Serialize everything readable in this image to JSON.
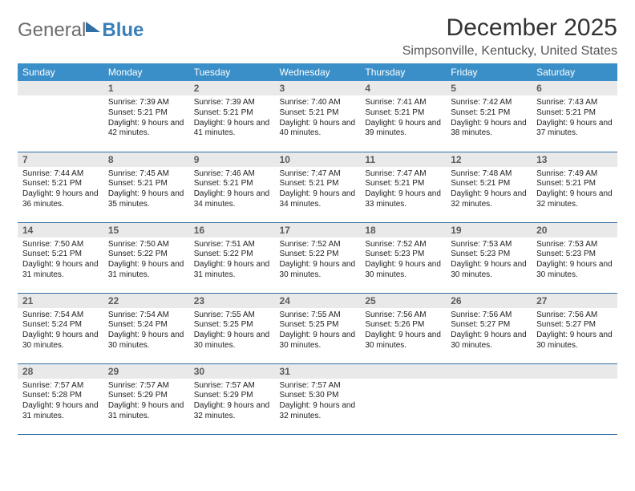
{
  "logo": {
    "part1": "General",
    "part2": "Blue"
  },
  "title": "December 2025",
  "location": "Simpsonville, Kentucky, United States",
  "colors": {
    "header_bg": "#3b8fc8",
    "header_fg": "#ffffff",
    "daynum_bg": "#e9e9e9",
    "daynum_fg": "#5b5b5b",
    "rule": "#2f6fa4",
    "text": "#222222",
    "logo_gray": "#6b6b6b",
    "logo_blue": "#3b7fb8"
  },
  "fonts": {
    "title_size": 30,
    "location_size": 16,
    "dow_size": 12,
    "daynum_size": 12,
    "body_size": 10
  },
  "daysOfWeek": [
    "Sunday",
    "Monday",
    "Tuesday",
    "Wednesday",
    "Thursday",
    "Friday",
    "Saturday"
  ],
  "weeks": [
    [
      {
        "num": "",
        "sunrise": "",
        "sunset": "",
        "daylight": ""
      },
      {
        "num": "1",
        "sunrise": "Sunrise: 7:39 AM",
        "sunset": "Sunset: 5:21 PM",
        "daylight": "Daylight: 9 hours and 42 minutes."
      },
      {
        "num": "2",
        "sunrise": "Sunrise: 7:39 AM",
        "sunset": "Sunset: 5:21 PM",
        "daylight": "Daylight: 9 hours and 41 minutes."
      },
      {
        "num": "3",
        "sunrise": "Sunrise: 7:40 AM",
        "sunset": "Sunset: 5:21 PM",
        "daylight": "Daylight: 9 hours and 40 minutes."
      },
      {
        "num": "4",
        "sunrise": "Sunrise: 7:41 AM",
        "sunset": "Sunset: 5:21 PM",
        "daylight": "Daylight: 9 hours and 39 minutes."
      },
      {
        "num": "5",
        "sunrise": "Sunrise: 7:42 AM",
        "sunset": "Sunset: 5:21 PM",
        "daylight": "Daylight: 9 hours and 38 minutes."
      },
      {
        "num": "6",
        "sunrise": "Sunrise: 7:43 AM",
        "sunset": "Sunset: 5:21 PM",
        "daylight": "Daylight: 9 hours and 37 minutes."
      }
    ],
    [
      {
        "num": "7",
        "sunrise": "Sunrise: 7:44 AM",
        "sunset": "Sunset: 5:21 PM",
        "daylight": "Daylight: 9 hours and 36 minutes."
      },
      {
        "num": "8",
        "sunrise": "Sunrise: 7:45 AM",
        "sunset": "Sunset: 5:21 PM",
        "daylight": "Daylight: 9 hours and 35 minutes."
      },
      {
        "num": "9",
        "sunrise": "Sunrise: 7:46 AM",
        "sunset": "Sunset: 5:21 PM",
        "daylight": "Daylight: 9 hours and 34 minutes."
      },
      {
        "num": "10",
        "sunrise": "Sunrise: 7:47 AM",
        "sunset": "Sunset: 5:21 PM",
        "daylight": "Daylight: 9 hours and 34 minutes."
      },
      {
        "num": "11",
        "sunrise": "Sunrise: 7:47 AM",
        "sunset": "Sunset: 5:21 PM",
        "daylight": "Daylight: 9 hours and 33 minutes."
      },
      {
        "num": "12",
        "sunrise": "Sunrise: 7:48 AM",
        "sunset": "Sunset: 5:21 PM",
        "daylight": "Daylight: 9 hours and 32 minutes."
      },
      {
        "num": "13",
        "sunrise": "Sunrise: 7:49 AM",
        "sunset": "Sunset: 5:21 PM",
        "daylight": "Daylight: 9 hours and 32 minutes."
      }
    ],
    [
      {
        "num": "14",
        "sunrise": "Sunrise: 7:50 AM",
        "sunset": "Sunset: 5:21 PM",
        "daylight": "Daylight: 9 hours and 31 minutes."
      },
      {
        "num": "15",
        "sunrise": "Sunrise: 7:50 AM",
        "sunset": "Sunset: 5:22 PM",
        "daylight": "Daylight: 9 hours and 31 minutes."
      },
      {
        "num": "16",
        "sunrise": "Sunrise: 7:51 AM",
        "sunset": "Sunset: 5:22 PM",
        "daylight": "Daylight: 9 hours and 31 minutes."
      },
      {
        "num": "17",
        "sunrise": "Sunrise: 7:52 AM",
        "sunset": "Sunset: 5:22 PM",
        "daylight": "Daylight: 9 hours and 30 minutes."
      },
      {
        "num": "18",
        "sunrise": "Sunrise: 7:52 AM",
        "sunset": "Sunset: 5:23 PM",
        "daylight": "Daylight: 9 hours and 30 minutes."
      },
      {
        "num": "19",
        "sunrise": "Sunrise: 7:53 AM",
        "sunset": "Sunset: 5:23 PM",
        "daylight": "Daylight: 9 hours and 30 minutes."
      },
      {
        "num": "20",
        "sunrise": "Sunrise: 7:53 AM",
        "sunset": "Sunset: 5:23 PM",
        "daylight": "Daylight: 9 hours and 30 minutes."
      }
    ],
    [
      {
        "num": "21",
        "sunrise": "Sunrise: 7:54 AM",
        "sunset": "Sunset: 5:24 PM",
        "daylight": "Daylight: 9 hours and 30 minutes."
      },
      {
        "num": "22",
        "sunrise": "Sunrise: 7:54 AM",
        "sunset": "Sunset: 5:24 PM",
        "daylight": "Daylight: 9 hours and 30 minutes."
      },
      {
        "num": "23",
        "sunrise": "Sunrise: 7:55 AM",
        "sunset": "Sunset: 5:25 PM",
        "daylight": "Daylight: 9 hours and 30 minutes."
      },
      {
        "num": "24",
        "sunrise": "Sunrise: 7:55 AM",
        "sunset": "Sunset: 5:25 PM",
        "daylight": "Daylight: 9 hours and 30 minutes."
      },
      {
        "num": "25",
        "sunrise": "Sunrise: 7:56 AM",
        "sunset": "Sunset: 5:26 PM",
        "daylight": "Daylight: 9 hours and 30 minutes."
      },
      {
        "num": "26",
        "sunrise": "Sunrise: 7:56 AM",
        "sunset": "Sunset: 5:27 PM",
        "daylight": "Daylight: 9 hours and 30 minutes."
      },
      {
        "num": "27",
        "sunrise": "Sunrise: 7:56 AM",
        "sunset": "Sunset: 5:27 PM",
        "daylight": "Daylight: 9 hours and 30 minutes."
      }
    ],
    [
      {
        "num": "28",
        "sunrise": "Sunrise: 7:57 AM",
        "sunset": "Sunset: 5:28 PM",
        "daylight": "Daylight: 9 hours and 31 minutes."
      },
      {
        "num": "29",
        "sunrise": "Sunrise: 7:57 AM",
        "sunset": "Sunset: 5:29 PM",
        "daylight": "Daylight: 9 hours and 31 minutes."
      },
      {
        "num": "30",
        "sunrise": "Sunrise: 7:57 AM",
        "sunset": "Sunset: 5:29 PM",
        "daylight": "Daylight: 9 hours and 32 minutes."
      },
      {
        "num": "31",
        "sunrise": "Sunrise: 7:57 AM",
        "sunset": "Sunset: 5:30 PM",
        "daylight": "Daylight: 9 hours and 32 minutes."
      },
      {
        "num": "",
        "sunrise": "",
        "sunset": "",
        "daylight": ""
      },
      {
        "num": "",
        "sunrise": "",
        "sunset": "",
        "daylight": ""
      },
      {
        "num": "",
        "sunrise": "",
        "sunset": "",
        "daylight": ""
      }
    ]
  ]
}
